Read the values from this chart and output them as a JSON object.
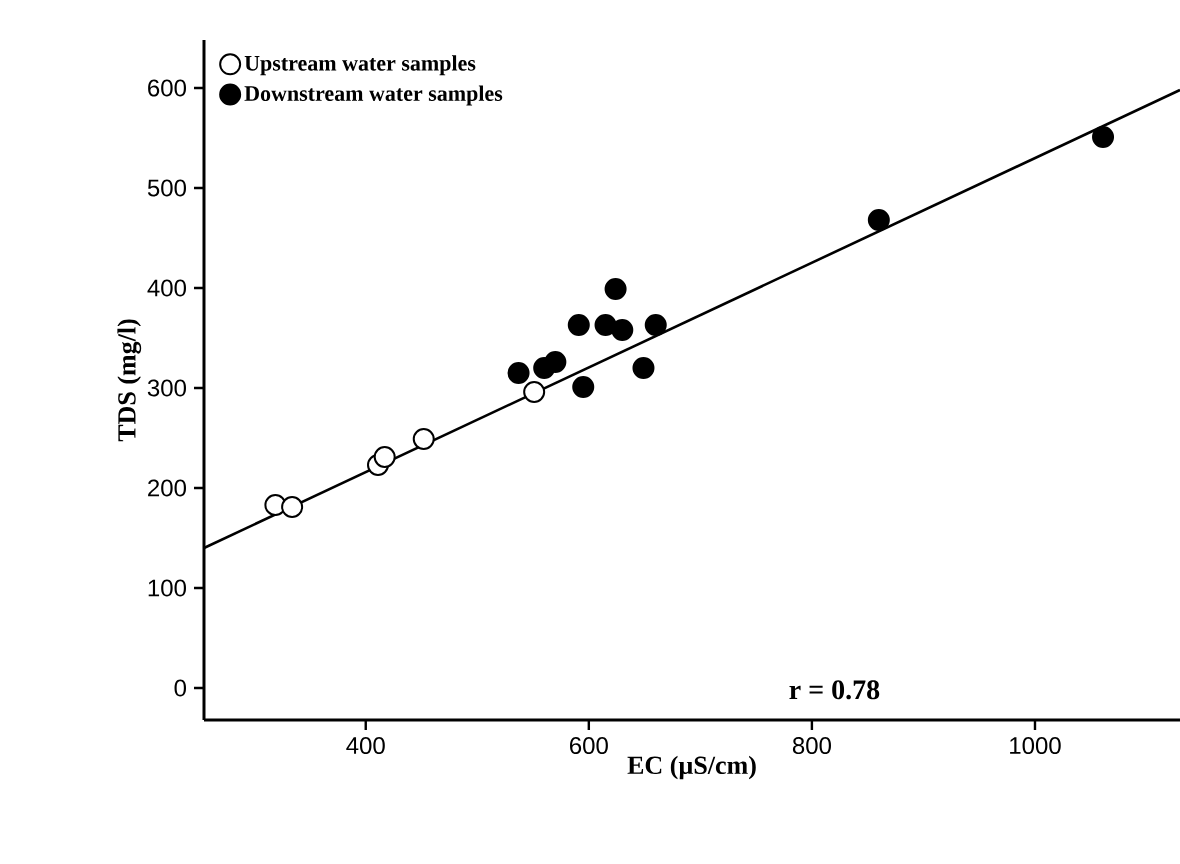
{
  "chart_data": {
    "type": "scatter",
    "xlabel": "EC (µS/cm)",
    "ylabel": "TDS (mg/l)",
    "xlim": [
      255,
      1130
    ],
    "ylim": [
      -32,
      648
    ],
    "xticks": [
      400,
      600,
      800,
      1000
    ],
    "yticks": [
      0,
      100,
      200,
      300,
      400,
      500,
      600
    ],
    "legend": "top left",
    "grid": false,
    "annotations": [
      "r = 0.78"
    ],
    "series": [
      {
        "name": "Upstream water samples",
        "color": "#ffffff",
        "marker": "circle",
        "x": [
          319,
          334,
          411,
          417,
          452,
          551
        ],
        "values": [
          183,
          181,
          223,
          231,
          249,
          296
        ]
      },
      {
        "name": "Downstream water samples",
        "color": "#000000",
        "marker": "circle",
        "x": [
          537,
          560,
          570,
          595,
          591,
          615,
          630,
          624,
          660,
          649,
          860,
          1061
        ],
        "values": [
          315,
          320,
          326,
          301,
          363,
          363,
          358,
          399,
          363,
          320,
          468,
          551
        ]
      },
      {
        "type": "line",
        "color": "#000000",
        "marker": "none",
        "x": [
          255,
          1130
        ],
        "values": [
          140,
          598
        ]
      }
    ]
  }
}
